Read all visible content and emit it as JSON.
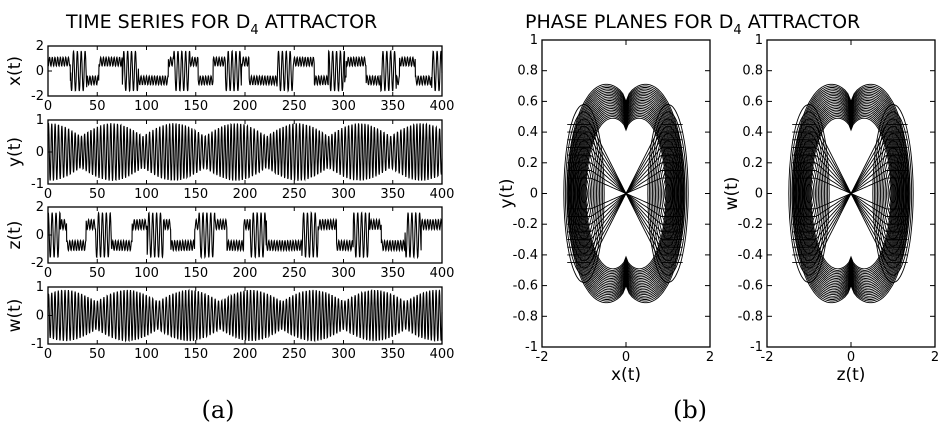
{
  "figure": {
    "left_title": {
      "main": "TIME SERIES FOR D",
      "sub": "4",
      "rest": " ATTRACTOR"
    },
    "right_title": {
      "main": "PHASE PLANES FOR D",
      "sub": "4",
      "rest": " ATTRACTOR"
    },
    "caption_a": "(a)",
    "caption_b": "(b)"
  },
  "chart_data": [
    {
      "type": "line",
      "ylabel": "x(t)",
      "xlim": [
        0,
        400
      ],
      "ylim": [
        -2,
        2
      ],
      "xticks": [
        "0",
        "50",
        "100",
        "150",
        "200",
        "250",
        "300",
        "350",
        "400"
      ],
      "yticks": [
        "-2",
        "0",
        "2"
      ],
      "amplitude": 1.6,
      "grid": false
    },
    {
      "type": "line",
      "ylabel": "y(t)",
      "xlim": [
        0,
        400
      ],
      "ylim": [
        -1,
        1
      ],
      "xticks": [
        "0",
        "50",
        "100",
        "150",
        "200",
        "250",
        "300",
        "350",
        "400"
      ],
      "yticks": [
        "-1",
        "0",
        "1"
      ],
      "amplitude": 0.9,
      "grid": false
    },
    {
      "type": "line",
      "ylabel": "z(t)",
      "xlim": [
        0,
        400
      ],
      "ylim": [
        -2,
        2
      ],
      "xticks": [
        "0",
        "50",
        "100",
        "150",
        "200",
        "250",
        "300",
        "350",
        "400"
      ],
      "yticks": [
        "-2",
        "0",
        "2"
      ],
      "amplitude": 1.6,
      "grid": false
    },
    {
      "type": "line",
      "ylabel": "w(t)",
      "xlim": [
        0,
        400
      ],
      "ylim": [
        -1,
        1
      ],
      "xticks": [
        "0",
        "50",
        "100",
        "150",
        "200",
        "250",
        "300",
        "350",
        "400"
      ],
      "yticks": [
        "-1",
        "0",
        "1"
      ],
      "amplitude": 0.9,
      "grid": false
    },
    {
      "type": "line",
      "xlabel": "x(t)",
      "ylabel": "y(t)",
      "xlim": [
        -2,
        2
      ],
      "ylim": [
        -1,
        1
      ],
      "xticks": [
        "-2",
        "0",
        "2"
      ],
      "yticks": [
        "-1",
        "-0.8",
        "-0.6",
        "-0.4",
        "-0.2",
        "0",
        "0.2",
        "0.4",
        "0.6",
        "0.8",
        "1"
      ],
      "centers": [
        -1,
        1
      ],
      "max_abs_y": 0.9,
      "min_abs_y_at_center": 0.6,
      "grid": false
    },
    {
      "type": "line",
      "xlabel": "z(t)",
      "ylabel": "w(t)",
      "xlim": [
        -2,
        2
      ],
      "ylim": [
        -1,
        1
      ],
      "xticks": [
        "-2",
        "0",
        "2"
      ],
      "yticks": [
        "-1",
        "-0.8",
        "-0.6",
        "-0.4",
        "-0.2",
        "0",
        "0.2",
        "0.4",
        "0.6",
        "0.8",
        "1"
      ],
      "centers": [
        -1,
        1
      ],
      "max_abs_y": 0.9,
      "min_abs_y_at_center": 0.6,
      "grid": false
    }
  ]
}
